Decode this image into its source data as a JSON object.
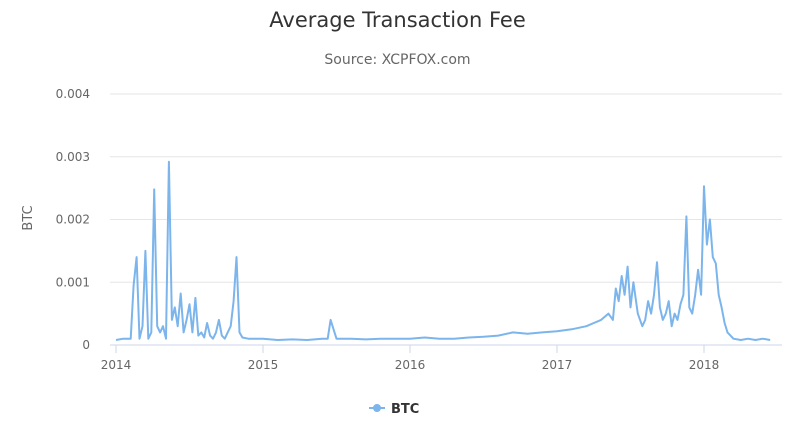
{
  "chart_data": {
    "type": "line",
    "title": "Average Transaction Fee",
    "subtitle": "Source: XCPFOX.com",
    "ylabel": "BTC",
    "xlabel": "",
    "ylim": [
      0,
      0.004
    ],
    "xlim": [
      2014.0,
      2018.48
    ],
    "y_ticks": [
      0,
      0.001,
      0.002,
      0.003,
      0.004
    ],
    "y_tick_labels": [
      "0",
      "0.001",
      "0.002",
      "0.003",
      "0.004"
    ],
    "x_ticks": [
      2014,
      2015,
      2016,
      2017,
      2018
    ],
    "x_tick_labels": [
      "2014",
      "2015",
      "2016",
      "2017",
      "2018"
    ],
    "grid": true,
    "legend_position": "bottom-center",
    "colors": {
      "series": "#7cb5ec",
      "grid": "#e6e6e6",
      "axis": "#ccd6eb"
    },
    "series": [
      {
        "name": "BTC",
        "x": [
          2014.0,
          2014.05,
          2014.1,
          2014.12,
          2014.14,
          2014.16,
          2014.18,
          2014.2,
          2014.22,
          2014.24,
          2014.26,
          2014.28,
          2014.3,
          2014.32,
          2014.34,
          2014.36,
          2014.38,
          2014.4,
          2014.42,
          2014.44,
          2014.46,
          2014.48,
          2014.5,
          2014.52,
          2014.54,
          2014.56,
          2014.58,
          2014.6,
          2014.62,
          2014.64,
          2014.66,
          2014.68,
          2014.7,
          2014.72,
          2014.74,
          2014.76,
          2014.78,
          2014.8,
          2014.82,
          2014.84,
          2014.86,
          2014.9,
          2015.0,
          2015.1,
          2015.2,
          2015.3,
          2015.4,
          2015.44,
          2015.46,
          2015.5,
          2015.6,
          2015.7,
          2015.8,
          2015.9,
          2016.0,
          2016.1,
          2016.2,
          2016.3,
          2016.4,
          2016.5,
          2016.6,
          2016.7,
          2016.8,
          2016.9,
          2017.0,
          2017.1,
          2017.2,
          2017.25,
          2017.3,
          2017.35,
          2017.38,
          2017.4,
          2017.42,
          2017.44,
          2017.46,
          2017.48,
          2017.5,
          2017.52,
          2017.55,
          2017.58,
          2017.6,
          2017.62,
          2017.64,
          2017.66,
          2017.68,
          2017.7,
          2017.72,
          2017.74,
          2017.76,
          2017.78,
          2017.8,
          2017.82,
          2017.84,
          2017.86,
          2017.88,
          2017.9,
          2017.92,
          2017.94,
          2017.96,
          2017.98,
          2018.0,
          2018.02,
          2018.04,
          2018.06,
          2018.08,
          2018.1,
          2018.12,
          2018.14,
          2018.16,
          2018.18,
          2018.2,
          2018.25,
          2018.3,
          2018.35,
          2018.4,
          2018.45
        ],
        "y": [
          8e-05,
          0.0001,
          0.0001,
          0.00095,
          0.0014,
          0.0001,
          0.0003,
          0.0015,
          0.0001,
          0.0002,
          0.00248,
          0.0003,
          0.0002,
          0.0003,
          0.0001,
          0.00292,
          0.0004,
          0.0006,
          0.0003,
          0.00082,
          0.0002,
          0.0004,
          0.00065,
          0.0002,
          0.00075,
          0.00015,
          0.0002,
          0.00012,
          0.00035,
          0.00015,
          0.0001,
          0.0002,
          0.0004,
          0.00015,
          0.0001,
          0.0002,
          0.0003,
          0.0007,
          0.0014,
          0.0002,
          0.00012,
          0.0001,
          0.0001,
          8e-05,
          9e-05,
          8e-05,
          0.0001,
          0.0001,
          0.0004,
          0.0001,
          0.0001,
          9e-05,
          0.0001,
          0.0001,
          0.0001,
          0.00012,
          0.0001,
          0.0001,
          0.00012,
          0.00013,
          0.00015,
          0.0002,
          0.00018,
          0.0002,
          0.00022,
          0.00025,
          0.0003,
          0.00035,
          0.0004,
          0.0005,
          0.0004,
          0.0009,
          0.0007,
          0.0011,
          0.0008,
          0.00125,
          0.0006,
          0.001,
          0.0005,
          0.0003,
          0.0004,
          0.0007,
          0.0005,
          0.0008,
          0.00132,
          0.0006,
          0.0004,
          0.0005,
          0.0007,
          0.0003,
          0.0005,
          0.0004,
          0.00065,
          0.0008,
          0.00205,
          0.0006,
          0.0005,
          0.0008,
          0.0012,
          0.0008,
          0.00253,
          0.0016,
          0.002,
          0.0014,
          0.0013,
          0.0008,
          0.0006,
          0.00035,
          0.0002,
          0.00015,
          0.0001,
          8e-05,
          0.0001,
          8e-05,
          0.0001,
          8e-05
        ]
      }
    ]
  }
}
